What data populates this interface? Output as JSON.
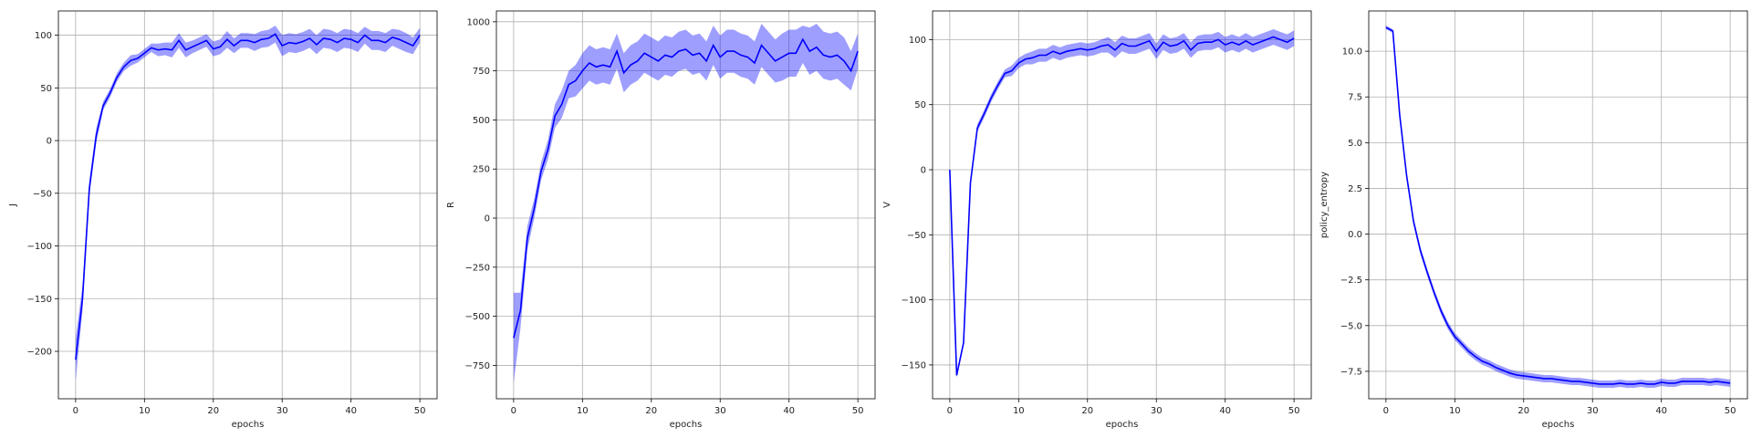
{
  "chart_data": [
    {
      "type": "line",
      "xlabel": "epochs",
      "ylabel": "J",
      "xlim": [
        -2.5,
        52.5
      ],
      "ylim": [
        -245,
        123
      ],
      "xticks": [
        0,
        10,
        20,
        30,
        40,
        50
      ],
      "yticks": [
        -200,
        -150,
        -100,
        -50,
        0,
        50,
        100
      ],
      "grid": true,
      "colors": {
        "line": "#0000ff",
        "band": "#0000ff"
      },
      "series": [
        {
          "x": [
            0,
            1,
            2,
            3,
            4,
            5,
            6,
            7,
            8,
            9,
            10,
            11,
            12,
            13,
            14,
            15,
            16,
            17,
            18,
            19,
            20,
            21,
            22,
            23,
            24,
            25,
            26,
            27,
            28,
            29,
            30,
            31,
            32,
            33,
            34,
            35,
            36,
            37,
            38,
            39,
            40,
            41,
            42,
            43,
            44,
            45,
            46,
            47,
            48,
            49,
            50
          ],
          "y": [
            -208,
            -150,
            -45,
            5,
            33,
            45,
            60,
            70,
            76,
            78,
            83,
            88,
            86,
            87,
            86,
            95,
            86,
            89,
            92,
            95,
            87,
            89,
            96,
            90,
            95,
            95,
            93,
            96,
            97,
            101,
            90,
            93,
            92,
            94,
            97,
            91,
            97,
            96,
            93,
            97,
            96,
            93,
            100,
            95,
            95,
            93,
            98,
            96,
            93,
            90,
            100
          ],
          "lower": [
            -228,
            -162,
            -52,
            -2,
            29,
            41,
            56,
            66,
            71,
            74,
            79,
            84,
            80,
            81,
            79,
            88,
            79,
            83,
            86,
            89,
            80,
            82,
            88,
            83,
            88,
            88,
            85,
            88,
            89,
            93,
            80,
            84,
            83,
            85,
            88,
            82,
            88,
            87,
            84,
            88,
            87,
            84,
            92,
            86,
            86,
            84,
            90,
            87,
            84,
            82,
            93
          ],
          "upper": [
            -188,
            -138,
            -38,
            12,
            37,
            49,
            64,
            74,
            81,
            82,
            87,
            92,
            92,
            93,
            93,
            102,
            93,
            95,
            98,
            101,
            94,
            96,
            104,
            97,
            102,
            102,
            101,
            104,
            105,
            109,
            100,
            102,
            101,
            103,
            106,
            100,
            106,
            105,
            102,
            106,
            105,
            102,
            108,
            104,
            104,
            102,
            106,
            105,
            102,
            98,
            107
          ]
        }
      ]
    },
    {
      "type": "line",
      "xlabel": "epochs",
      "ylabel": "R",
      "xlim": [
        -2.5,
        52.5
      ],
      "ylim": [
        -920,
        1055
      ],
      "xticks": [
        0,
        10,
        20,
        30,
        40,
        50
      ],
      "yticks": [
        -750,
        -500,
        -250,
        0,
        250,
        500,
        750,
        1000
      ],
      "grid": true,
      "colors": {
        "line": "#0000ff",
        "band": "#0000ff"
      },
      "series": [
        {
          "x": [
            0,
            1,
            2,
            3,
            4,
            5,
            6,
            7,
            8,
            9,
            10,
            11,
            12,
            13,
            14,
            15,
            16,
            17,
            18,
            19,
            20,
            21,
            22,
            23,
            24,
            25,
            26,
            27,
            28,
            29,
            30,
            31,
            32,
            33,
            34,
            35,
            36,
            37,
            38,
            39,
            40,
            41,
            42,
            43,
            44,
            45,
            46,
            47,
            48,
            49,
            50
          ],
          "y": [
            -610,
            -470,
            -100,
            50,
            240,
            350,
            520,
            580,
            680,
            700,
            750,
            790,
            770,
            780,
            770,
            850,
            740,
            780,
            800,
            840,
            820,
            800,
            830,
            820,
            850,
            860,
            830,
            840,
            800,
            880,
            820,
            850,
            850,
            830,
            820,
            790,
            880,
            840,
            800,
            820,
            840,
            840,
            910,
            850,
            870,
            830,
            820,
            830,
            800,
            750,
            850
          ],
          "lower": [
            -840,
            -560,
            -160,
            0,
            195,
            300,
            460,
            510,
            610,
            620,
            660,
            700,
            680,
            690,
            680,
            760,
            640,
            680,
            700,
            740,
            720,
            700,
            730,
            720,
            750,
            760,
            730,
            740,
            700,
            780,
            710,
            740,
            740,
            720,
            710,
            680,
            770,
            730,
            690,
            700,
            720,
            720,
            790,
            730,
            750,
            710,
            700,
            710,
            680,
            650,
            760
          ],
          "upper": [
            -380,
            -380,
            -40,
            100,
            285,
            400,
            580,
            650,
            750,
            780,
            840,
            880,
            860,
            870,
            860,
            940,
            840,
            880,
            900,
            940,
            920,
            900,
            930,
            920,
            950,
            960,
            930,
            940,
            900,
            980,
            930,
            960,
            960,
            940,
            930,
            900,
            990,
            950,
            910,
            940,
            960,
            960,
            980,
            970,
            990,
            950,
            940,
            950,
            920,
            850,
            940
          ]
        }
      ]
    },
    {
      "type": "line",
      "xlabel": "epochs",
      "ylabel": "V",
      "xlim": [
        -2.5,
        52.5
      ],
      "ylim": [
        -176,
        122
      ],
      "xticks": [
        0,
        10,
        20,
        30,
        40,
        50
      ],
      "yticks": [
        -150,
        -100,
        -50,
        0,
        50,
        100
      ],
      "grid": true,
      "colors": {
        "line": "#0000ff",
        "band": "#0000ff"
      },
      "series": [
        {
          "x": [
            0,
            1,
            2,
            3,
            4,
            5,
            6,
            7,
            8,
            9,
            10,
            11,
            12,
            13,
            14,
            15,
            16,
            17,
            18,
            19,
            20,
            21,
            22,
            23,
            24,
            25,
            26,
            27,
            28,
            29,
            30,
            31,
            32,
            33,
            34,
            35,
            36,
            37,
            38,
            39,
            40,
            41,
            42,
            43,
            44,
            45,
            46,
            47,
            48,
            49,
            50
          ],
          "y": [
            0,
            -158,
            -133,
            -10,
            32,
            43,
            55,
            65,
            74,
            76,
            82,
            85,
            86,
            88,
            88,
            91,
            89,
            91,
            92,
            93,
            92,
            93,
            95,
            96,
            92,
            97,
            95,
            95,
            97,
            99,
            91,
            98,
            95,
            96,
            99,
            92,
            97,
            98,
            98,
            100,
            96,
            98,
            96,
            99,
            96,
            98,
            100,
            102,
            100,
            98,
            101
          ],
          "lower": [
            -1,
            -160,
            -135,
            -13,
            29,
            40,
            52,
            62,
            71,
            72,
            78,
            81,
            81,
            83,
            83,
            86,
            84,
            86,
            87,
            88,
            87,
            88,
            90,
            90,
            86,
            91,
            89,
            89,
            91,
            93,
            85,
            92,
            89,
            90,
            93,
            86,
            91,
            92,
            92,
            94,
            90,
            92,
            90,
            93,
            90,
            92,
            94,
            96,
            94,
            92,
            95
          ],
          "upper": [
            1,
            -156,
            -131,
            -7,
            35,
            46,
            58,
            68,
            77,
            80,
            86,
            89,
            91,
            93,
            93,
            96,
            94,
            96,
            97,
            98,
            97,
            98,
            100,
            102,
            98,
            103,
            101,
            101,
            103,
            105,
            97,
            104,
            101,
            102,
            105,
            98,
            103,
            104,
            104,
            106,
            102,
            104,
            102,
            105,
            102,
            104,
            106,
            108,
            106,
            104,
            107
          ]
        }
      ]
    },
    {
      "type": "line",
      "xlabel": "epochs",
      "ylabel": "policy_entropy",
      "xlim": [
        -2.5,
        52.5
      ],
      "ylim": [
        -9.0,
        12.2
      ],
      "xticks": [
        0,
        10,
        20,
        30,
        40,
        50
      ],
      "yticks": [
        -7.5,
        -5.0,
        -2.5,
        0.0,
        2.5,
        5.0,
        7.5,
        10.0
      ],
      "grid": true,
      "colors": {
        "line": "#0000ff",
        "band": "#0000ff"
      },
      "series": [
        {
          "x": [
            0,
            1,
            2,
            3,
            4,
            5,
            6,
            7,
            8,
            9,
            10,
            11,
            12,
            13,
            14,
            15,
            16,
            17,
            18,
            19,
            20,
            21,
            22,
            23,
            24,
            25,
            26,
            27,
            28,
            29,
            30,
            31,
            32,
            33,
            34,
            35,
            36,
            37,
            38,
            39,
            40,
            41,
            42,
            43,
            44,
            45,
            46,
            47,
            48,
            49,
            50
          ],
          "y": [
            11.3,
            11.1,
            6.5,
            3.2,
            0.7,
            -0.9,
            -2.1,
            -3.2,
            -4.2,
            -5.0,
            -5.6,
            -6.0,
            -6.4,
            -6.7,
            -6.95,
            -7.1,
            -7.3,
            -7.45,
            -7.6,
            -7.7,
            -7.75,
            -7.8,
            -7.85,
            -7.9,
            -7.9,
            -7.95,
            -8.0,
            -8.05,
            -8.05,
            -8.1,
            -8.15,
            -8.2,
            -8.2,
            -8.2,
            -8.15,
            -8.2,
            -8.2,
            -8.15,
            -8.2,
            -8.2,
            -8.1,
            -8.15,
            -8.15,
            -8.05,
            -8.05,
            -8.05,
            -8.05,
            -8.1,
            -8.05,
            -8.1,
            -8.15
          ],
          "lower": [
            11.2,
            11.0,
            6.3,
            3.0,
            0.5,
            -1.1,
            -2.3,
            -3.4,
            -4.4,
            -5.2,
            -5.8,
            -6.2,
            -6.6,
            -6.9,
            -7.15,
            -7.3,
            -7.5,
            -7.65,
            -7.8,
            -7.9,
            -7.95,
            -8.0,
            -8.05,
            -8.1,
            -8.1,
            -8.15,
            -8.2,
            -8.25,
            -8.25,
            -8.3,
            -8.35,
            -8.4,
            -8.4,
            -8.4,
            -8.35,
            -8.4,
            -8.4,
            -8.35,
            -8.4,
            -8.4,
            -8.3,
            -8.35,
            -8.35,
            -8.25,
            -8.25,
            -8.25,
            -8.25,
            -8.3,
            -8.25,
            -8.3,
            -8.35
          ],
          "upper": [
            11.4,
            11.2,
            6.7,
            3.4,
            0.9,
            -0.7,
            -1.9,
            -3.0,
            -4.0,
            -4.8,
            -5.4,
            -5.8,
            -6.2,
            -6.5,
            -6.75,
            -6.9,
            -7.1,
            -7.25,
            -7.4,
            -7.5,
            -7.55,
            -7.6,
            -7.65,
            -7.7,
            -7.7,
            -7.75,
            -7.8,
            -7.85,
            -7.85,
            -7.9,
            -7.95,
            -8.0,
            -8.0,
            -8.0,
            -7.95,
            -8.0,
            -8.0,
            -7.95,
            -8.0,
            -8.0,
            -7.9,
            -7.95,
            -7.95,
            -7.85,
            -7.85,
            -7.85,
            -7.85,
            -7.9,
            -7.85,
            -7.9,
            -7.95
          ]
        }
      ]
    }
  ]
}
